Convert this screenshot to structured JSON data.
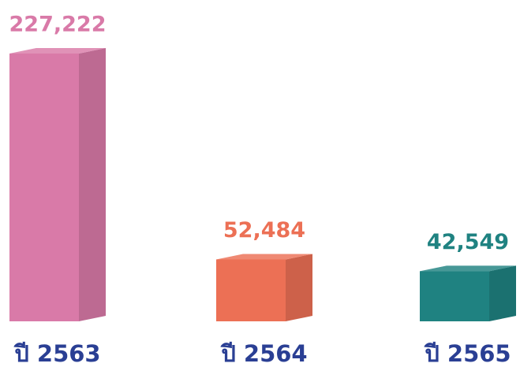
{
  "chart_data": {
    "type": "bar3d",
    "categories": [
      "ปี 2563",
      "ปี 2564",
      "ปี 2565"
    ],
    "values": [
      227222,
      52484,
      42549
    ],
    "value_labels": [
      "227,222",
      "52,484",
      "42,549"
    ],
    "colors": [
      "#d97aa8",
      "#ec7055",
      "#1f8281"
    ]
  }
}
